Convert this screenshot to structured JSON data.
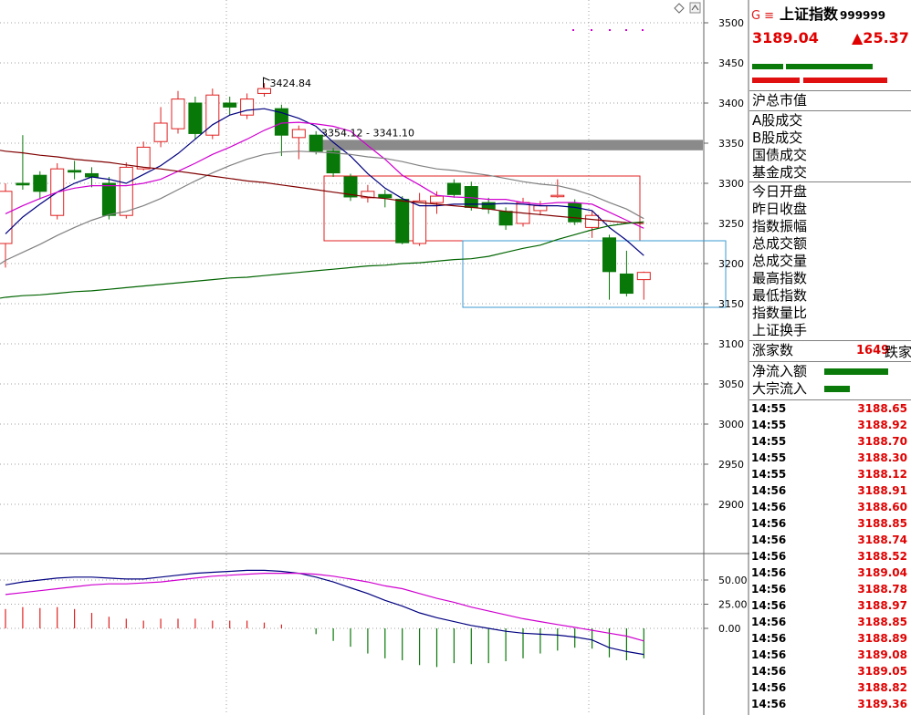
{
  "chart_data": [
    {
      "type": "candlestick",
      "y_axis_ticks": [
        "3500",
        "3450",
        "3400",
        "3350",
        "3300",
        "3250",
        "3200",
        "3150",
        "3100",
        "3050",
        "3000",
        "2950",
        "2900"
      ],
      "ylim": [
        2850,
        3520
      ],
      "annotations": [
        "3424.84",
        "3354.12 - 3341.10"
      ],
      "candles": [
        {
          "o": 3225,
          "c": 3290,
          "h": 3300,
          "l": 3195
        },
        {
          "o": 3300,
          "c": 3298,
          "h": 3360,
          "l": 3292
        },
        {
          "o": 3310,
          "c": 3290,
          "h": 3315,
          "l": 3280
        },
        {
          "o": 3260,
          "c": 3318,
          "h": 3325,
          "l": 3255
        },
        {
          "o": 3316,
          "c": 3314,
          "h": 3328,
          "l": 3305
        },
        {
          "o": 3312,
          "c": 3308,
          "h": 3320,
          "l": 3295
        },
        {
          "o": 3300,
          "c": 3260,
          "h": 3308,
          "l": 3255
        },
        {
          "o": 3260,
          "c": 3320,
          "h": 3326,
          "l": 3256
        },
        {
          "o": 3318,
          "c": 3345,
          "h": 3352,
          "l": 3316
        },
        {
          "o": 3352,
          "c": 3375,
          "h": 3395,
          "l": 3345
        },
        {
          "o": 3368,
          "c": 3405,
          "h": 3415,
          "l": 3362
        },
        {
          "o": 3400,
          "c": 3362,
          "h": 3408,
          "l": 3355
        },
        {
          "o": 3360,
          "c": 3410,
          "h": 3418,
          "l": 3355
        },
        {
          "o": 3400,
          "c": 3395,
          "h": 3408,
          "l": 3385
        },
        {
          "o": 3385,
          "c": 3405,
          "h": 3412,
          "l": 3380
        },
        {
          "o": 3412,
          "c": 3418,
          "h": 3424.84,
          "l": 3408
        },
        {
          "o": 3393,
          "c": 3360,
          "h": 3398,
          "l": 3334
        },
        {
          "o": 3357,
          "c": 3367,
          "h": 3372,
          "l": 3330
        },
        {
          "o": 3360,
          "c": 3340,
          "h": 3365,
          "l": 3336
        },
        {
          "o": 3340,
          "c": 3313,
          "h": 3344,
          "l": 3308
        },
        {
          "o": 3308,
          "c": 3283,
          "h": 3312,
          "l": 3278
        },
        {
          "o": 3282,
          "c": 3290,
          "h": 3298,
          "l": 3276
        },
        {
          "o": 3286,
          "c": 3282,
          "h": 3292,
          "l": 3270
        },
        {
          "o": 3280,
          "c": 3226,
          "h": 3284,
          "l": 3224
        },
        {
          "o": 3225,
          "c": 3278,
          "h": 3288,
          "l": 3222
        },
        {
          "o": 3276,
          "c": 3284,
          "h": 3290,
          "l": 3262
        },
        {
          "o": 3300,
          "c": 3286,
          "h": 3305,
          "l": 3282
        },
        {
          "o": 3296,
          "c": 3270,
          "h": 3302,
          "l": 3266
        },
        {
          "o": 3276,
          "c": 3268,
          "h": 3282,
          "l": 3262
        },
        {
          "o": 3265,
          "c": 3248,
          "h": 3270,
          "l": 3242
        },
        {
          "o": 3250,
          "c": 3276,
          "h": 3282,
          "l": 3246
        },
        {
          "o": 3266,
          "c": 3272,
          "h": 3278,
          "l": 3260
        },
        {
          "o": 3285,
          "c": 3285,
          "h": 3305,
          "l": 3282
        },
        {
          "o": 3275,
          "c": 3252,
          "h": 3280,
          "l": 3248
        },
        {
          "o": 3245,
          "c": 3260,
          "h": 3266,
          "l": 3232
        },
        {
          "o": 3232,
          "c": 3190,
          "h": 3236,
          "l": 3155
        },
        {
          "o": 3187,
          "c": 3163,
          "h": 3216,
          "l": 3159
        },
        {
          "o": 3180,
          "c": 3189,
          "h": 3190,
          "l": 3155
        }
      ],
      "ma_lines": [
        {
          "color": "#000080",
          "values": [
            3237,
            3258,
            3274,
            3289,
            3300,
            3308,
            3305,
            3300,
            3311,
            3322,
            3337,
            3355,
            3373,
            3385,
            3391,
            3393,
            3388,
            3381,
            3371,
            3351,
            3334,
            3312,
            3294,
            3281,
            3272,
            3272,
            3274,
            3274,
            3274,
            3275,
            3274,
            3272,
            3272,
            3270,
            3266,
            3245,
            3229,
            3210
          ]
        },
        {
          "color": "#d000d0",
          "values": [
            3262,
            3272,
            3281,
            3289,
            3294,
            3297,
            3297,
            3297,
            3300,
            3305,
            3315,
            3325,
            3336,
            3345,
            3355,
            3366,
            3375,
            3376,
            3374,
            3371,
            3365,
            3347,
            3330,
            3310,
            3298,
            3285,
            3283,
            3282,
            3280,
            3280,
            3276,
            3274,
            3276,
            3276,
            3274,
            3264,
            3254,
            3244
          ]
        },
        {
          "color": "#808080",
          "values": [
            3204,
            3214,
            3224,
            3235,
            3245,
            3254,
            3261,
            3265,
            3272,
            3281,
            3292,
            3303,
            3313,
            3322,
            3330,
            3336,
            3339,
            3340,
            3339,
            3338,
            3336,
            3333,
            3331,
            3327,
            3322,
            3318,
            3316,
            3313,
            3310,
            3306,
            3302,
            3299,
            3297,
            3292,
            3285,
            3276,
            3268,
            3256
          ]
        },
        {
          "color": "#800000",
          "values": [
            3340,
            3338,
            3335,
            3333,
            3330,
            3328,
            3326,
            3323,
            3320,
            3318,
            3315,
            3312,
            3309,
            3306,
            3303,
            3301,
            3298,
            3295,
            3292,
            3289,
            3286,
            3283,
            3281,
            3278,
            3276,
            3274,
            3272,
            3270,
            3268,
            3265,
            3263,
            3261,
            3259,
            3257,
            3255,
            3253,
            3251,
            3250
          ]
        },
        {
          "color": "#006400",
          "values": [
            3158,
            3160,
            3161,
            3163,
            3165,
            3166,
            3168,
            3170,
            3172,
            3174,
            3176,
            3178,
            3180,
            3182,
            3183,
            3185,
            3187,
            3189,
            3191,
            3193,
            3195,
            3197,
            3198,
            3200,
            3201,
            3203,
            3205,
            3206,
            3209,
            3214,
            3219,
            3223,
            3230,
            3236,
            3242,
            3247,
            3250,
            3252
          ]
        }
      ],
      "resistance_band": [
        3341.1,
        3354.12
      ]
    },
    {
      "type": "macd",
      "y_axis_ticks": [
        "50.00",
        "25.00",
        "0.00"
      ],
      "ylim": [
        -105,
        65
      ],
      "dif": [
        45,
        48,
        50,
        52,
        53,
        53,
        52,
        51,
        51,
        53,
        55,
        57,
        58,
        59,
        60,
        60,
        59,
        57,
        53,
        48,
        42,
        36,
        29,
        23,
        16,
        11,
        7,
        3,
        0,
        -3,
        -5,
        -6,
        -7,
        -9,
        -12,
        -20,
        -24,
        -27
      ],
      "dea": [
        35,
        37,
        39,
        41,
        43,
        45,
        46,
        46,
        47,
        48,
        50,
        52,
        54,
        55,
        56,
        57,
        57,
        57,
        56,
        54,
        51,
        48,
        44,
        41,
        36,
        31,
        27,
        22,
        18,
        14,
        10,
        7,
        4,
        1,
        -2,
        -5,
        -8,
        -13
      ],
      "hist": [
        20,
        22,
        21,
        22,
        20,
        16,
        12,
        10,
        8,
        10,
        10,
        10,
        8,
        8,
        8,
        6,
        4,
        0,
        -6,
        -13,
        -19,
        -26,
        -31,
        -33,
        -38,
        -40,
        -36,
        -37,
        -36,
        -34,
        -31,
        -26,
        -23,
        -20,
        -21,
        -30,
        -33,
        -31
      ]
    }
  ],
  "panel": {
    "g_mark": "G",
    "menu_mark": "≡",
    "name": "上证指数",
    "code": "999999",
    "price": "3189.04",
    "change": "▲25.37",
    "rows_a": [
      "沪总市值"
    ],
    "rows_b": [
      "A股成交",
      "B股成交",
      "国债成交",
      "基金成交"
    ],
    "rows_c": [
      "今日开盘",
      "昨日收盘",
      "指数振幅",
      "总成交额",
      "总成交量",
      "最高指数",
      "最低指数",
      "指数量比",
      "上证换手"
    ],
    "rise_label": "涨家数",
    "rise_count": "1649",
    "fall_label": "跌家数",
    "flow": [
      "净流入额",
      "大宗流入"
    ],
    "ticks": [
      {
        "t": "14:55",
        "v": "3188.65"
      },
      {
        "t": "14:55",
        "v": "3188.92"
      },
      {
        "t": "14:55",
        "v": "3188.70"
      },
      {
        "t": "14:55",
        "v": "3188.30"
      },
      {
        "t": "14:55",
        "v": "3188.12"
      },
      {
        "t": "14:56",
        "v": "3188.91"
      },
      {
        "t": "14:56",
        "v": "3188.60"
      },
      {
        "t": "14:56",
        "v": "3188.85"
      },
      {
        "t": "14:56",
        "v": "3188.74"
      },
      {
        "t": "14:56",
        "v": "3188.52"
      },
      {
        "t": "14:56",
        "v": "3189.04"
      },
      {
        "t": "14:56",
        "v": "3188.78"
      },
      {
        "t": "14:56",
        "v": "3188.97"
      },
      {
        "t": "14:56",
        "v": "3188.85"
      },
      {
        "t": "14:56",
        "v": "3188.89"
      },
      {
        "t": "14:56",
        "v": "3189.08"
      },
      {
        "t": "14:56",
        "v": "3189.05"
      },
      {
        "t": "14:56",
        "v": "3188.82"
      },
      {
        "t": "14:56",
        "v": "3189.36"
      }
    ]
  }
}
